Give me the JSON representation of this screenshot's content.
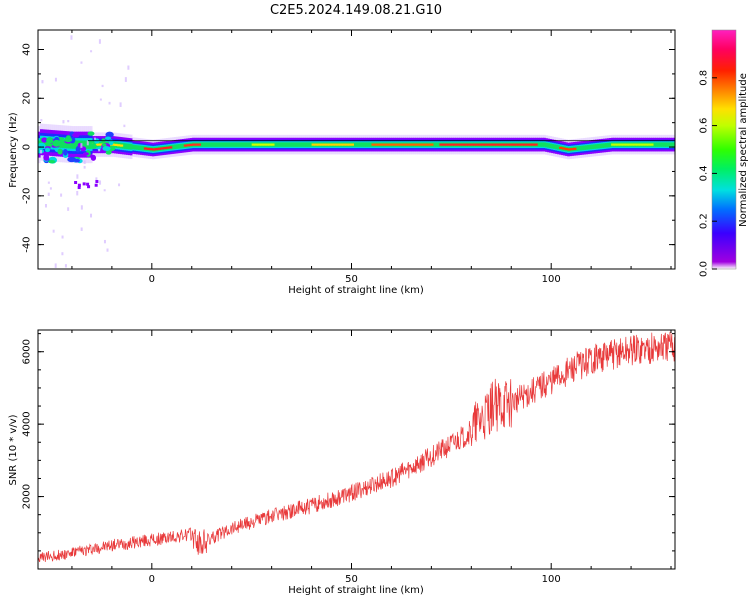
{
  "title": "C2E5.2024.149.08.21.G10",
  "chart_data": [
    {
      "type": "heatmap",
      "title": "C2E5.2024.149.08.21.G10",
      "xlabel": "Height of straight line (km)",
      "ylabel": "Frequency (Hz)",
      "xlim": [
        -28.5,
        131
      ],
      "ylim": [
        -50,
        48
      ],
      "xticks": [
        0,
        50,
        100
      ],
      "yticks": [
        -40,
        -20,
        0,
        20,
        40
      ],
      "colorbar": {
        "label": "Normalized spectral amplitude",
        "range": [
          0,
          1
        ],
        "ticks": [
          0.0,
          0.2,
          0.4,
          0.6,
          0.8
        ],
        "colormap": "rainbow (white, purple, blue, cyan, green, yellow, orange, red, magenta)"
      },
      "ridge": {
        "description": "narrow high-amplitude band near 0 Hz across full height range",
        "center_freq_hz": 1,
        "points": [
          {
            "x": -28,
            "f": 2
          },
          {
            "x": -20,
            "f": 1
          },
          {
            "x": -10,
            "f": 1
          },
          {
            "x": 0,
            "f": -1
          },
          {
            "x": 10,
            "f": 1
          },
          {
            "x": 30,
            "f": 1
          },
          {
            "x": 60,
            "f": 1
          },
          {
            "x": 90,
            "f": 1
          },
          {
            "x": 98,
            "f": 1
          },
          {
            "x": 104,
            "f": -1
          },
          {
            "x": 115,
            "f": 1
          },
          {
            "x": 131,
            "f": 1
          }
        ]
      },
      "grid": false
    },
    {
      "type": "line",
      "xlabel": "Height of straight line (km)",
      "ylabel": "SNR (10 * v/v)",
      "xlim": [
        -28.5,
        131
      ],
      "ylim": [
        0,
        6600
      ],
      "xticks": [
        0,
        50,
        100
      ],
      "yticks": [
        2000,
        4000,
        6000
      ],
      "color": "#e8393a",
      "series": [
        {
          "x": [
            -28,
            -20,
            -10,
            0,
            10,
            12,
            20,
            30,
            40,
            50,
            60,
            70,
            80,
            85,
            90,
            100,
            105,
            110,
            120,
            131
          ],
          "values": [
            300,
            450,
            650,
            800,
            950,
            650,
            1150,
            1450,
            1750,
            2100,
            2500,
            3100,
            3800,
            4500,
            4600,
            5200,
            5500,
            5800,
            6050,
            6150
          ]
        }
      ],
      "grid": false
    }
  ]
}
